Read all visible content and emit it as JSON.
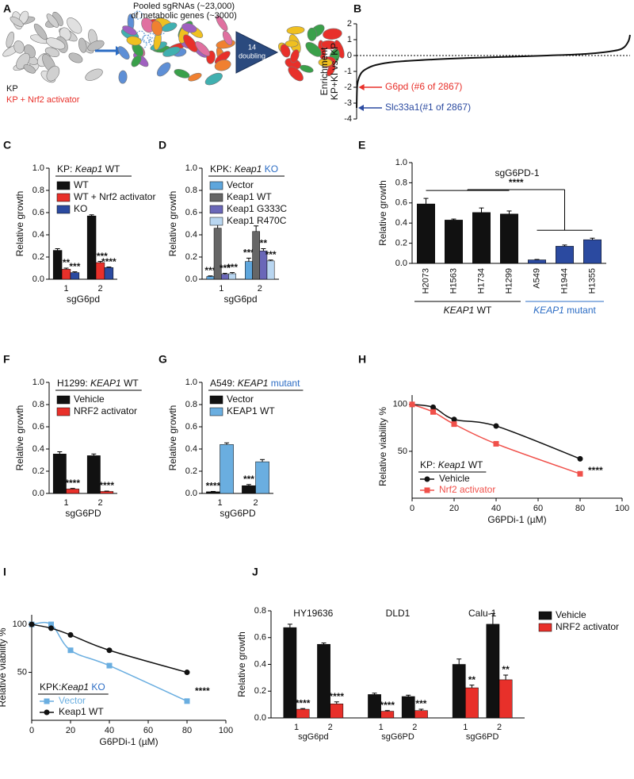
{
  "schematic": {
    "panel": "A",
    "sgrna_lines": [
      "Pooled sgRNAs (~23,000)",
      "of metabolic genes (~3000)"
    ],
    "arrow_label": [
      "14",
      "doubling"
    ],
    "groups": [
      {
        "text": "KP",
        "color": "#111111"
      },
      {
        "text": "KP + Nrf2 activator",
        "color": "#e8302a"
      }
    ]
  },
  "chart_data": [
    {
      "panel": "B",
      "type": "line",
      "ylabel": [
        "Enrichment",
        "KP+KI vs. KP"
      ],
      "x": [
        1,
        6,
        20,
        50,
        100,
        200,
        400,
        800,
        1200,
        1600,
        2000,
        2400,
        2700,
        2800,
        2850,
        2867
      ],
      "values": [
        -3.3,
        -2,
        -1.5,
        -1.1,
        -0.85,
        -0.6,
        -0.4,
        -0.25,
        -0.15,
        -0.08,
        0,
        0.1,
        0.3,
        0.5,
        0.9,
        1.3
      ],
      "color": "#111111",
      "xlim": [
        1,
        2867
      ],
      "ylim": [
        -4,
        2
      ],
      "yticks": [
        -4,
        -3,
        -2,
        -1,
        0,
        1,
        2
      ],
      "annotations": [
        {
          "text": "G6pd (#6 of 2867)",
          "color": "#e8302a",
          "x": 6,
          "y": -2
        },
        {
          "text": "Slc33a1(#1 of 2867)",
          "color": "#2b4aa0",
          "x": 1,
          "y": -3.3
        }
      ]
    },
    {
      "panel": "C",
      "type": "bar",
      "title": [
        {
          "text": "KP: "
        },
        {
          "text": "Keap1",
          "italic": true
        },
        {
          "text": " WT"
        }
      ],
      "categories": [
        "1",
        "2"
      ],
      "xlabel": "sgG6pd",
      "ylabel": "Relative growth",
      "ylim": [
        0,
        1
      ],
      "yticks": [
        {
          "value": 0,
          "label": "0.0"
        },
        0.2,
        0.4,
        0.6,
        0.8,
        {
          "value": 1,
          "label": "1.0"
        }
      ],
      "legend": "upper left",
      "series": [
        {
          "name": "WT",
          "color": "#111111",
          "values": [
            0.26,
            0.57
          ],
          "errors": [
            0.015,
            0.01
          ]
        },
        {
          "name": "WT + Nrf2 activator",
          "color": "#e8302a",
          "values": [
            0.09,
            0.15
          ],
          "errors": [
            0.01,
            0.01
          ],
          "stars": [
            "**",
            "****"
          ]
        },
        {
          "name": "KO",
          "color": "#2b4aa0",
          "values": [
            0.06,
            0.105
          ],
          "errors": [
            0.007,
            0.005
          ],
          "stars": [
            "***",
            "****"
          ]
        }
      ]
    },
    {
      "panel": "D",
      "type": "bar",
      "title": [
        {
          "text": "KPK: "
        },
        {
          "text": "Keap1",
          "italic": true
        },
        {
          "text": " KO",
          "color": "#2b6cc4"
        }
      ],
      "categories": [
        "1",
        "2"
      ],
      "xlabel": "sgG6pd",
      "ylabel": "Relative growth",
      "ylim": [
        0,
        1
      ],
      "yticks": [
        {
          "value": 0,
          "label": "0.0"
        },
        0.2,
        0.4,
        0.6,
        0.8,
        {
          "value": 1,
          "label": "1.0"
        }
      ],
      "legend": "upper left",
      "series": [
        {
          "name": "Vector",
          "color": "#5ea6dc",
          "values": [
            0.025,
            0.16
          ],
          "errors": [
            0.005,
            0.03
          ],
          "stars": [
            "***",
            "***"
          ]
        },
        {
          "name": "Keap1 WT",
          "color": "#666666",
          "values": [
            0.46,
            0.43
          ],
          "errors": [
            0.035,
            0.05
          ]
        },
        {
          "name": "Keap1 G333C",
          "color": "#6a67b8",
          "values": [
            0.045,
            0.255
          ],
          "errors": [
            0.008,
            0.02
          ],
          "stars": [
            "***",
            "**"
          ]
        },
        {
          "name": "Keap1 R470C",
          "color": "#b9d6f0",
          "values": [
            0.05,
            0.165
          ],
          "errors": [
            0.01,
            0.008
          ],
          "stars": [
            "***",
            "***"
          ]
        }
      ]
    },
    {
      "panel": "E",
      "type": "bar",
      "title": "sgG6PD-1",
      "ylabel": "Relative growth",
      "ylim": [
        0,
        1
      ],
      "yticks": [
        {
          "value": 0,
          "label": "0.0"
        },
        0.2,
        0.4,
        0.6,
        0.8,
        {
          "value": 1,
          "label": "1.0"
        }
      ],
      "significance": "****",
      "groups": [
        {
          "label": [
            {
              "text": "KEAP1",
              "italic": true
            },
            {
              "text": " WT"
            }
          ],
          "color": "#111111",
          "categories": [
            "H2073",
            "H1563",
            "H1734",
            "H1299"
          ],
          "values": [
            0.59,
            0.43,
            0.505,
            0.49
          ],
          "errors": [
            0.055,
            0.01,
            0.045,
            0.03
          ]
        },
        {
          "label": [
            {
              "text": "KEAP1",
              "italic": true,
              "color": "#2b6cc4"
            },
            {
              "text": " mutant",
              "color": "#2b6cc4"
            }
          ],
          "color": "#2b4aa0",
          "categories": [
            "A549",
            "H1944",
            "H1355"
          ],
          "values": [
            0.035,
            0.17,
            0.235
          ],
          "errors": [
            0.004,
            0.012,
            0.015
          ]
        }
      ]
    },
    {
      "panel": "F",
      "type": "bar",
      "title": [
        {
          "text": "H1299: "
        },
        {
          "text": "KEAP1",
          "italic": true
        },
        {
          "text": " WT"
        }
      ],
      "categories": [
        "1",
        "2"
      ],
      "xlabel": "sgG6PD",
      "ylabel": "Relative growth",
      "ylim": [
        0,
        1
      ],
      "yticks": [
        {
          "value": 0,
          "label": "0.0"
        },
        0.2,
        0.4,
        0.6,
        0.8,
        {
          "value": 1,
          "label": "1.0"
        }
      ],
      "legend": "upper left",
      "series": [
        {
          "name": "Vehicle",
          "color": "#111111",
          "values": [
            0.355,
            0.34
          ],
          "errors": [
            0.02,
            0.015
          ]
        },
        {
          "name": "NRF2 activator",
          "color": "#e8302a",
          "values": [
            0.04,
            0.018
          ],
          "errors": [
            0.005,
            0.003
          ],
          "stars": [
            "****",
            "****"
          ]
        }
      ]
    },
    {
      "panel": "G",
      "type": "bar",
      "title": [
        {
          "text": "A549: "
        },
        {
          "text": "KEAP1",
          "italic": true
        },
        {
          "text": " mutant",
          "color": "#2b6cc4"
        }
      ],
      "categories": [
        "1",
        "2"
      ],
      "xlabel": "sgG6PD",
      "ylabel": "Relative growth",
      "ylim": [
        0,
        1
      ],
      "yticks": [
        {
          "value": 0,
          "label": "0.0"
        },
        0.2,
        0.4,
        0.6,
        0.8,
        {
          "value": 1,
          "label": "1.0"
        }
      ],
      "legend": "upper left",
      "series": [
        {
          "name": "Vector",
          "color": "#111111",
          "values": [
            0.015,
            0.07
          ],
          "errors": [
            0.003,
            0.01
          ],
          "stars": [
            "****",
            "***"
          ]
        },
        {
          "name": "KEAP1 WT",
          "color": "#6aaee0",
          "values": [
            0.44,
            0.285
          ],
          "errors": [
            0.015,
            0.02
          ]
        }
      ]
    },
    {
      "panel": "H",
      "type": "scatter",
      "x": [
        0,
        10,
        20,
        40,
        80
      ],
      "xlabel": "G6PDi-1 (µM)",
      "ylabel": "Relative viability %",
      "xlim": [
        0,
        100
      ],
      "xticks": [
        0,
        20,
        40,
        60,
        80,
        100
      ],
      "ylim": [
        0,
        110
      ],
      "yticks": [
        50,
        100
      ],
      "legend": "lower left",
      "legend_title": [
        {
          "text": "KP: "
        },
        {
          "text": "Keap1",
          "italic": true
        },
        {
          "text": " WT"
        }
      ],
      "significance": "****",
      "series": [
        {
          "name": "Vehicle",
          "color": "#111111",
          "marker": "circle",
          "values": [
            100,
            97,
            84,
            77,
            42
          ]
        },
        {
          "name": "Nrf2 activator",
          "color": "#f0504a",
          "marker": "square",
          "values": [
            100,
            92,
            79,
            58,
            26
          ]
        }
      ]
    },
    {
      "panel": "I",
      "type": "scatter",
      "x": [
        0,
        10,
        20,
        40,
        80
      ],
      "xlabel": "G6PDi-1 (µM)",
      "ylabel": "Relative viability %",
      "xlim": [
        0,
        100
      ],
      "xticks": [
        0,
        20,
        40,
        60,
        80,
        100
      ],
      "ylim": [
        0,
        110
      ],
      "yticks": [
        50,
        100
      ],
      "legend": "lower left",
      "legend_title": [
        {
          "text": "KPK:"
        },
        {
          "text": "Keap1",
          "italic": true
        },
        {
          "text": " KO",
          "color": "#2b6cc4"
        }
      ],
      "significance": "****",
      "series": [
        {
          "name": "Vector",
          "color": "#6aaee0",
          "marker": "square",
          "values": [
            100,
            100,
            73,
            57,
            20
          ]
        },
        {
          "name": "Keap1 WT",
          "color": "#111111",
          "marker": "circle",
          "values": [
            100,
            96,
            89,
            73,
            50
          ]
        }
      ]
    },
    {
      "panel": "J",
      "type": "bar",
      "ylabel": "Relative growth",
      "ylim": [
        0,
        0.8
      ],
      "yticks": [
        {
          "value": 0,
          "label": "0.0"
        },
        0.2,
        0.4,
        0.6,
        0.8
      ],
      "legend": "right",
      "groups": [
        {
          "name": "HY19636",
          "xlabel": "sgG6pd"
        },
        {
          "name": "DLD1",
          "xlabel": "sgG6PD"
        },
        {
          "name": "Calu-1",
          "xlabel": "sgG6PD"
        }
      ],
      "categories": [
        "1",
        "2",
        "1",
        "2",
        "1",
        "2"
      ],
      "series": [
        {
          "name": "Vehicle",
          "color": "#111111",
          "values": [
            0.675,
            0.55,
            0.175,
            0.16,
            0.4,
            0.7
          ],
          "errors": [
            0.025,
            0.01,
            0.01,
            0.01,
            0.04,
            0.08
          ]
        },
        {
          "name": "NRF2 activator",
          "color": "#e8302a",
          "values": [
            0.065,
            0.105,
            0.05,
            0.055,
            0.225,
            0.285
          ],
          "errors": [
            0.005,
            0.015,
            0.005,
            0.01,
            0.02,
            0.035
          ],
          "stars": [
            "****",
            "****",
            "****",
            "***",
            "**",
            "**"
          ]
        }
      ]
    }
  ]
}
